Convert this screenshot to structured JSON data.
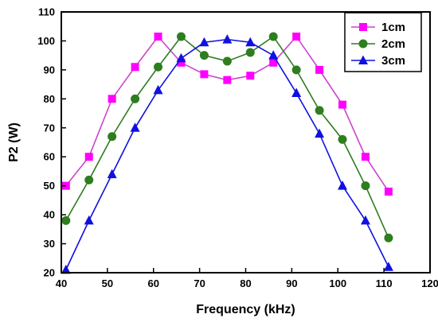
{
  "chart_data": {
    "type": "line",
    "title": "",
    "xlabel": "Frequency (kHz)",
    "ylabel": "P2 (W)",
    "xlim": [
      40,
      120
    ],
    "ylim": [
      20,
      110
    ],
    "x_ticks": [
      40,
      50,
      60,
      70,
      80,
      90,
      100,
      110,
      120
    ],
    "y_ticks": [
      20,
      30,
      40,
      50,
      60,
      70,
      80,
      90,
      100,
      110
    ],
    "grid": false,
    "legend_position": "top-right",
    "series": [
      {
        "name": "1cm",
        "color": "#ff00ff",
        "line_color": "#cc44cc",
        "marker": "square",
        "x": [
          41,
          46,
          51,
          56,
          61,
          66,
          71,
          76,
          81,
          86,
          91,
          96,
          101,
          106,
          111
        ],
        "y": [
          50,
          60,
          80,
          91,
          101.5,
          92.5,
          88.5,
          86.5,
          88,
          92.5,
          101.5,
          90,
          78,
          60,
          48
        ]
      },
      {
        "name": "2cm",
        "color": "#2e7d1e",
        "line_color": "#2e7d1e",
        "marker": "circle",
        "x": [
          41,
          46,
          51,
          56,
          61,
          66,
          71,
          76,
          81,
          86,
          91,
          96,
          101,
          106,
          111
        ],
        "y": [
          38,
          52,
          67,
          80,
          91,
          101.5,
          95,
          93,
          96,
          101.5,
          90,
          76,
          66,
          50,
          32
        ]
      },
      {
        "name": "3cm",
        "color": "#1010e0",
        "line_color": "#1010e0",
        "marker": "triangle",
        "x": [
          41,
          46,
          51,
          56,
          61,
          66,
          71,
          76,
          81,
          86,
          91,
          96,
          101,
          106,
          111
        ],
        "y": [
          21,
          38,
          54,
          70,
          83,
          94,
          99.5,
          100.5,
          99.5,
          95,
          82,
          68,
          50,
          38,
          22
        ]
      }
    ]
  }
}
